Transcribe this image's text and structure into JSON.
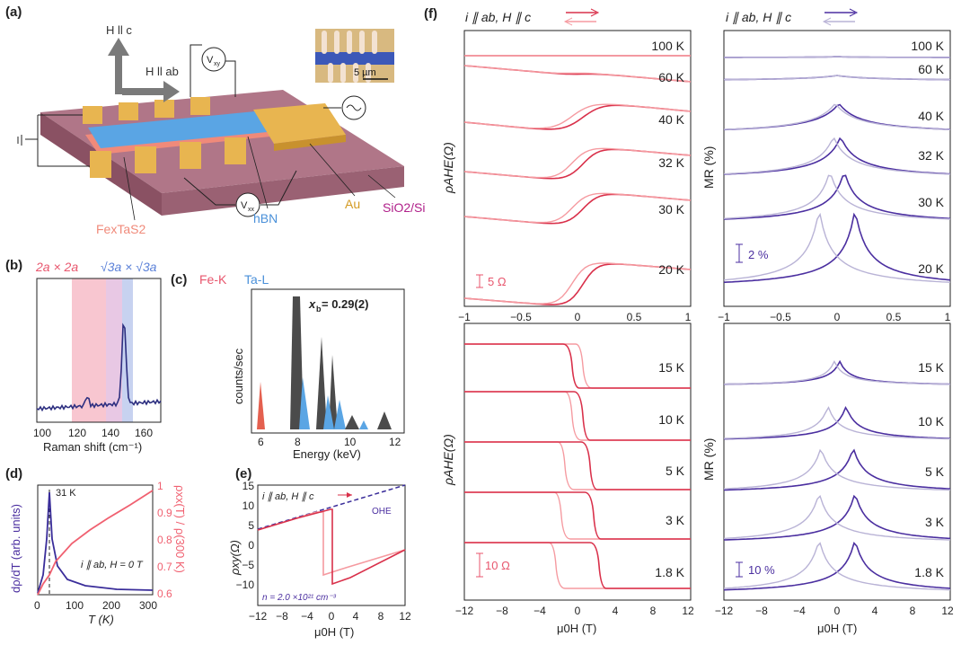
{
  "panel_labels": {
    "a": "(a)",
    "b": "(b)",
    "c": "(c)",
    "d": "(d)",
    "e": "(e)",
    "f": "(f)"
  },
  "device": {
    "h_c": "H ll c",
    "h_ab": "H ll ab",
    "vxy": "V",
    "vxy_sub": "xy",
    "vxx": "V",
    "vxx_sub": "xx",
    "fetas2": "FexTaS2",
    "hbn": "hBN",
    "au": "Au",
    "sio2": "SiO2/Si",
    "scale": "5 µm",
    "colors": {
      "substrate": "#a86c7f",
      "gold": "#e8b550",
      "hbn": "#5aa5e4",
      "flake": "#f08a7a"
    }
  },
  "raman": {
    "title_red": "2a × 2a",
    "title_blue": "√3a × √3a",
    "xlabel": "Raman shift (cm⁻¹)",
    "xticks": [
      "100",
      "120",
      "140",
      "160"
    ]
  },
  "edx": {
    "fe": "Fe-K",
    "ta": "Ta-L",
    "xb": "x",
    "xb_sub": "b",
    "xb_val": " = 0.29(2)",
    "ylabel": "counts/sec",
    "xlabel": "Energy (keV)",
    "xticks": [
      "6",
      "8",
      "10",
      "12"
    ]
  },
  "panel_d": {
    "ylabel_left": "dρ/dT (arb. units)",
    "ylabel_right": "ρxx(T) / ρ(300 K)",
    "annot": "31 K",
    "cond": "i ∥ ab, H = 0 T",
    "xlabel": "T (K)",
    "xticks": [
      "0",
      "100",
      "200",
      "300"
    ],
    "yticks_right": [
      "1",
      "0.9",
      "0.8",
      "0.7",
      "0.6"
    ]
  },
  "panel_e": {
    "legend": "i ∥ ab, H ∥ c",
    "ohe": "OHE",
    "density": "n = 2.0 ×10²¹ cm⁻³",
    "ylabel": "ρxy(Ω)",
    "xlabel": "μ0H (T)",
    "xticks": [
      "−12",
      "−8",
      "−4",
      "0",
      "4",
      "8",
      "12"
    ],
    "yticks": [
      "15",
      "10",
      "5",
      "0",
      "−5",
      "−10"
    ]
  },
  "panel_f": {
    "header_left": "i ∥ ab, H ∥ c",
    "header_right": "i ∥ ab, H ∥ c",
    "ylabel_ahe": "ρAHE(Ω)",
    "ylabel_mr": "MR (%)",
    "scale_tl": "5 Ω",
    "scale_tr": "2 %",
    "scale_bl": "10 Ω",
    "scale_br": "10 %",
    "temps_top": [
      "100 K",
      "60 K",
      "40 K",
      "32 K",
      "30 K",
      "20 K"
    ],
    "temps_bottom": [
      "15 K",
      "10 K",
      "5 K",
      "3 K",
      "1.8 K"
    ],
    "xticks_top": [
      "−1",
      "−0.5",
      "0",
      "0.5",
      "1"
    ],
    "xticks_bottom": [
      "−12",
      "−8",
      "−4",
      "0",
      "4",
      "8",
      "12"
    ],
    "xlabel": "μ0H (T)",
    "colors": {
      "ahe_dark": "#d9304a",
      "ahe_light": "#f59aa0",
      "mr_dark": "#4b2fa0",
      "mr_light": "#b9b3d6"
    }
  }
}
